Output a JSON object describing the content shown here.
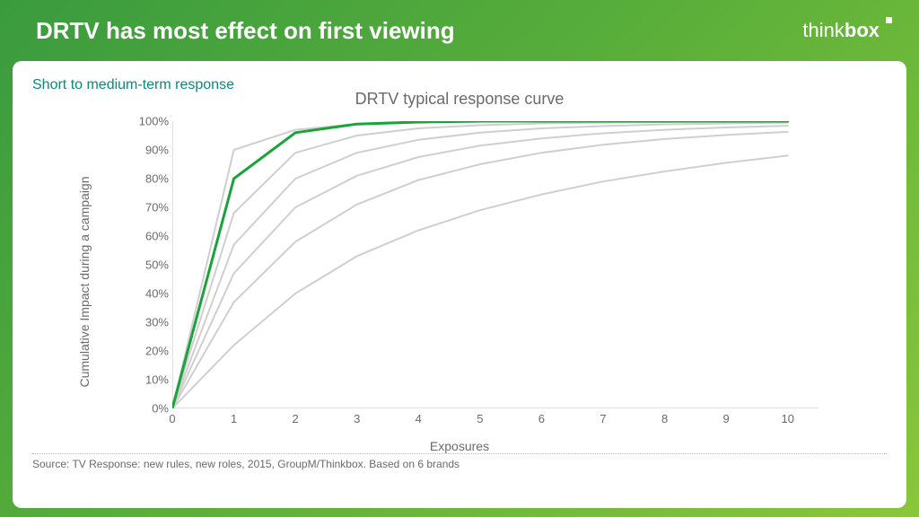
{
  "header": {
    "title": "DRTV has most effect on first viewing",
    "logo_prefix": "think",
    "logo_suffix": "box"
  },
  "subtitle": "Short to medium-term response",
  "chart": {
    "type": "line",
    "title": "DRTV typical response curve",
    "xlabel": "Exposures",
    "ylabel": "Cumulative Impact during a campaign",
    "xlim": [
      0,
      10.5
    ],
    "ylim": [
      0,
      100
    ],
    "xticks": [
      0,
      1,
      2,
      3,
      4,
      5,
      6,
      7,
      8,
      9,
      10
    ],
    "yticks": [
      0,
      10,
      20,
      30,
      40,
      50,
      60,
      70,
      80,
      90,
      100
    ],
    "ytick_suffix": "%",
    "axis_color": "#bfbfbf",
    "axis_width": 1,
    "background_color": "#ffffff",
    "highlight_color": "#1aa33a",
    "highlight_width": 3,
    "other_color": "#cfcfcf",
    "other_width": 2,
    "label_fontsize": 14,
    "tick_fontsize": 13,
    "title_fontsize": 18,
    "x_values": [
      0,
      1,
      2,
      3,
      4,
      5,
      6,
      7,
      8,
      9,
      10
    ],
    "series": [
      {
        "name": "curve-a",
        "highlight": false,
        "y": [
          0,
          90,
          97,
          99,
          99.6,
          99.8,
          100,
          100,
          100,
          100,
          100
        ]
      },
      {
        "name": "curve-drtv",
        "highlight": true,
        "y": [
          0,
          80,
          96,
          99,
          99.7,
          100,
          100,
          100,
          100,
          100,
          100
        ]
      },
      {
        "name": "curve-c",
        "highlight": false,
        "y": [
          0,
          68,
          89,
          95,
          97.5,
          98.6,
          99.2,
          99.5,
          99.7,
          99.8,
          99.9
        ]
      },
      {
        "name": "curve-d",
        "highlight": false,
        "y": [
          0,
          57,
          80,
          89,
          93.5,
          96,
          97.5,
          98.3,
          98.9,
          99.2,
          99.5
        ]
      },
      {
        "name": "curve-e",
        "highlight": false,
        "y": [
          0,
          47,
          70,
          81,
          87.5,
          91.5,
          94,
          95.8,
          97,
          97.8,
          98.4
        ]
      },
      {
        "name": "curve-f",
        "highlight": false,
        "y": [
          0,
          37,
          58,
          71,
          79.5,
          85,
          89,
          91.8,
          93.8,
          95.2,
          96.3
        ]
      },
      {
        "name": "curve-g",
        "highlight": false,
        "y": [
          0,
          22,
          40,
          53,
          62,
          69,
          74.5,
          79,
          82.5,
          85.5,
          88
        ]
      }
    ]
  },
  "source": "Source: TV Response: new rules, new roles, 2015, GroupM/Thinkbox. Based on 6 brands"
}
